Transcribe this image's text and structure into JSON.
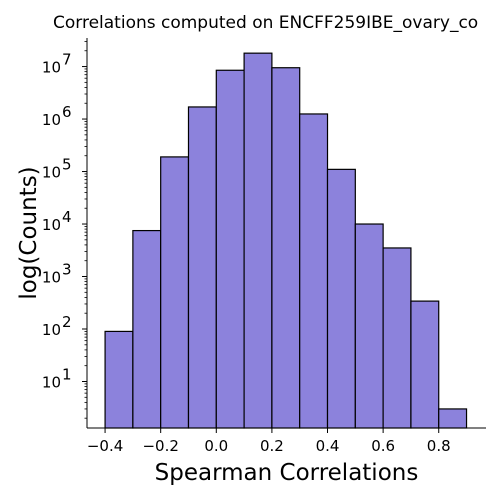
{
  "chart_data": {
    "type": "bar",
    "title": "Correlations computed on ENCFF259IBE_ovary_co",
    "xlabel": "Spearman Correlations",
    "ylabel": "log(Counts)",
    "y_scale": "log",
    "bin_edges": [
      -0.4,
      -0.3,
      -0.2,
      -0.1,
      0.0,
      0.1,
      0.2,
      0.3,
      0.4,
      0.5,
      0.6,
      0.7,
      0.8,
      0.9
    ],
    "values": [
      90,
      7500,
      190000,
      1700000,
      8500000,
      18000000,
      9500000,
      1250000,
      110000,
      10000,
      3500,
      340,
      3
    ],
    "xlim": [
      -0.465,
      0.97
    ],
    "ylim": [
      1.3,
      35000000
    ],
    "x_ticks": [
      {
        "value": -0.4,
        "label": "−0.4"
      },
      {
        "value": -0.2,
        "label": "−0.2"
      },
      {
        "value": 0.0,
        "label": "0.0"
      },
      {
        "value": 0.2,
        "label": "0.2"
      },
      {
        "value": 0.4,
        "label": "0.4"
      },
      {
        "value": 0.6,
        "label": "0.6"
      },
      {
        "value": 0.8,
        "label": "0.8"
      }
    ],
    "y_ticks": [
      {
        "value": 10,
        "base": "10",
        "exp": "1"
      },
      {
        "value": 100,
        "base": "10",
        "exp": "2"
      },
      {
        "value": 1000,
        "base": "10",
        "exp": "3"
      },
      {
        "value": 10000,
        "base": "10",
        "exp": "4"
      },
      {
        "value": 100000,
        "base": "10",
        "exp": "5"
      },
      {
        "value": 1000000,
        "base": "10",
        "exp": "6"
      },
      {
        "value": 10000000,
        "base": "10",
        "exp": "7"
      }
    ],
    "bar_color": "#8c82dc",
    "edge_color": "#000000",
    "grid": false,
    "legend": "none"
  }
}
